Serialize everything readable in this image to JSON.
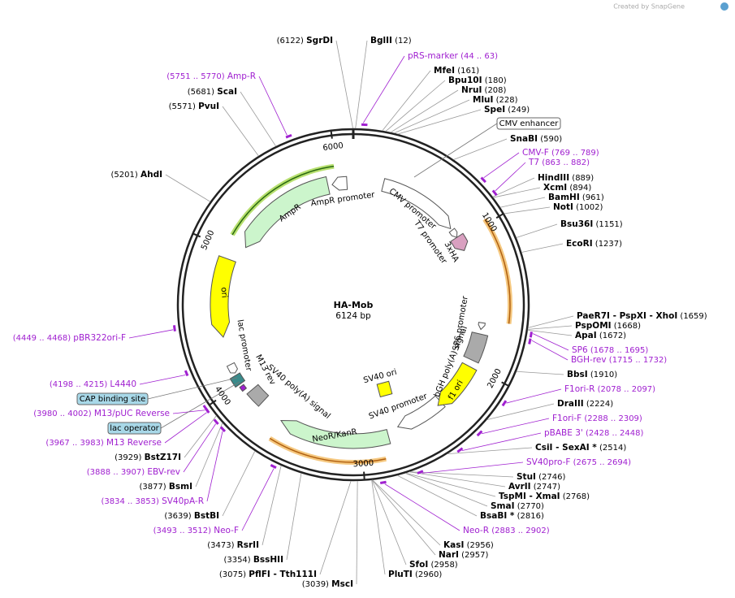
{
  "credit": "Created by SnapGene",
  "plasmid": {
    "name": "HA-Mob",
    "length": "6124 bp"
  },
  "ticks": [
    1000,
    2000,
    3000,
    4000,
    5000,
    6000
  ],
  "enzymes": [
    {
      "name": "SgrDI",
      "pos": "(6122)"
    },
    {
      "name": "BglII",
      "pos": "(12)"
    },
    {
      "name": "MfeI",
      "pos": "(161)"
    },
    {
      "name": "Bpu10I",
      "pos": "(180)"
    },
    {
      "name": "NruI",
      "pos": "(208)"
    },
    {
      "name": "MluI",
      "pos": "(228)"
    },
    {
      "name": "SpeI",
      "pos": "(249)"
    },
    {
      "name": "SnaBI",
      "pos": "(590)"
    },
    {
      "name": "HindIII",
      "pos": "(889)"
    },
    {
      "name": "XcmI",
      "pos": "(894)"
    },
    {
      "name": "BamHI",
      "pos": "(961)"
    },
    {
      "name": "NotI",
      "pos": "(1002)"
    },
    {
      "name": "Bsu36I",
      "pos": "(1151)"
    },
    {
      "name": "EcoRI",
      "pos": "(1237)"
    },
    {
      "name": "PaeR7I - PspXI - XhoI",
      "pos": "(1659)"
    },
    {
      "name": "PspOMI",
      "pos": "(1668)"
    },
    {
      "name": "ApaI",
      "pos": "(1672)"
    },
    {
      "name": "BbsI",
      "pos": "(1910)"
    },
    {
      "name": "DraIII",
      "pos": "(2224)"
    },
    {
      "name": "CsiI - SexAI *",
      "pos": "(2514)"
    },
    {
      "name": "StuI",
      "pos": "(2746)"
    },
    {
      "name": "AvrII",
      "pos": "(2747)"
    },
    {
      "name": "TspMI - XmaI",
      "pos": "(2768)"
    },
    {
      "name": "SmaI",
      "pos": "(2770)"
    },
    {
      "name": "BsaBI *",
      "pos": "(2816)"
    },
    {
      "name": "KasI",
      "pos": "(2956)"
    },
    {
      "name": "NarI",
      "pos": "(2957)"
    },
    {
      "name": "SfoI",
      "pos": "(2958)"
    },
    {
      "name": "PluTI",
      "pos": "(2960)"
    },
    {
      "name": "MscI",
      "pos": "(3039)"
    },
    {
      "name": "PflFI - Tth111I",
      "pos": "(3075)"
    },
    {
      "name": "BssHII",
      "pos": "(3354)"
    },
    {
      "name": "RsrII",
      "pos": "(3473)"
    },
    {
      "name": "BstBI",
      "pos": "(3639)"
    },
    {
      "name": "BsmI",
      "pos": "(3877)"
    },
    {
      "name": "BstZ17I",
      "pos": "(3929)"
    },
    {
      "name": "AhdI",
      "pos": "(5201)"
    },
    {
      "name": "PvuI",
      "pos": "(5571)"
    },
    {
      "name": "ScaI",
      "pos": "(5681)"
    }
  ],
  "primers": [
    {
      "name": "pRS-marker",
      "range": "(44 .. 63)"
    },
    {
      "name": "CMV-F",
      "range": "(769 .. 789)"
    },
    {
      "name": "T7",
      "range": "(863 .. 882)"
    },
    {
      "name": "SP6",
      "range": "(1678 .. 1695)"
    },
    {
      "name": "BGH-rev",
      "range": "(1715 .. 1732)"
    },
    {
      "name": "F1ori-R",
      "range": "(2078 .. 2097)"
    },
    {
      "name": "F1ori-F",
      "range": "(2288 .. 2309)"
    },
    {
      "name": "pBABE 3'",
      "range": "(2428 .. 2448)"
    },
    {
      "name": "SV40pro-F",
      "range": "(2675 .. 2694)"
    },
    {
      "name": "Neo-R",
      "range": "(2883 .. 2902)"
    },
    {
      "name": "Neo-F",
      "range": "(3493 .. 3512)"
    },
    {
      "name": "SV40pA-R",
      "range": "(3834 .. 3853)"
    },
    {
      "name": "EBV-rev",
      "range": "(3888 .. 3907)"
    },
    {
      "name": "M13 Reverse",
      "range": "(3967 .. 3983)"
    },
    {
      "name": "M13/pUC Reverse",
      "range": "(3980 .. 4002)"
    },
    {
      "name": "L4440",
      "range": "(4198 .. 4215)"
    },
    {
      "name": "pBR322ori-F",
      "range": "(4449 .. 4468)"
    },
    {
      "name": "Amp-R",
      "range": "(5751 .. 5770)"
    }
  ],
  "boxed_features": [
    "CMV enhancer",
    "CAP binding site",
    "lac operator"
  ],
  "inner_features": [
    "AmpR promoter",
    "AmpR",
    "CMV promoter",
    "T7 promoter",
    "3xHA",
    "ori",
    "lac promoter",
    "M13 rev",
    "SV40 poly(A) signal",
    "NeoR/KanR",
    "SV40 promoter",
    "SV40 ori",
    "bGH poly(A) signal",
    "f1 ori",
    "SP6 promoter"
  ]
}
